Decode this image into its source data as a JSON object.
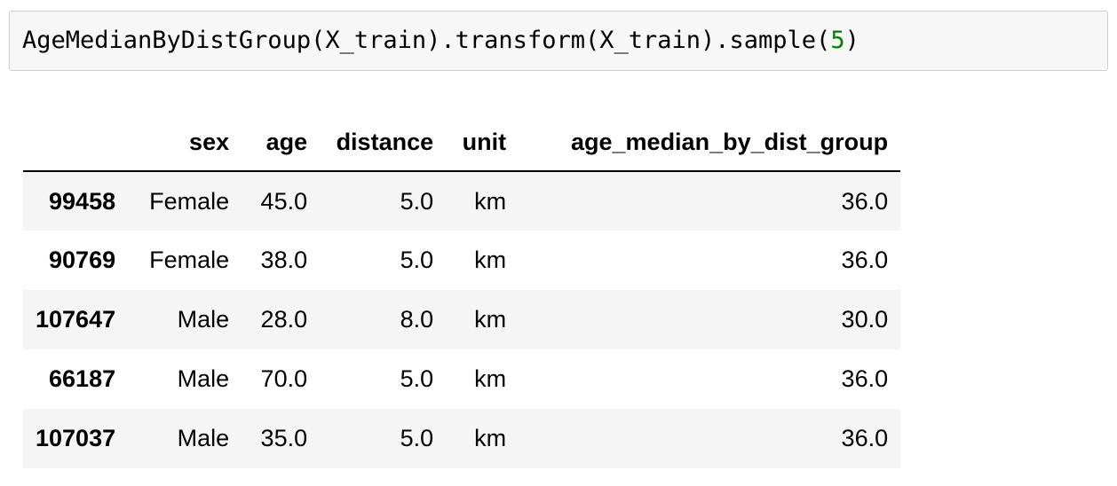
{
  "code_cell": {
    "prefix": "AgeMedianByDistGroup(X_train).transform(X_train).sample(",
    "number": "5",
    "suffix": ")"
  },
  "dataframe": {
    "columns": [
      "sex",
      "age",
      "distance",
      "unit",
      "age_median_by_dist_group"
    ],
    "rows": [
      {
        "index": "99458",
        "cells": [
          "Female",
          "45.0",
          "5.0",
          "km",
          "36.0"
        ]
      },
      {
        "index": "90769",
        "cells": [
          "Female",
          "38.0",
          "5.0",
          "km",
          "36.0"
        ]
      },
      {
        "index": "107647",
        "cells": [
          "Male",
          "28.0",
          "8.0",
          "km",
          "30.0"
        ]
      },
      {
        "index": "66187",
        "cells": [
          "Male",
          "70.0",
          "5.0",
          "km",
          "36.0"
        ]
      },
      {
        "index": "107037",
        "cells": [
          "Male",
          "35.0",
          "5.0",
          "km",
          "36.0"
        ]
      }
    ]
  },
  "colors": {
    "code_number": "#008000",
    "striped_row": "#f5f5f5",
    "input_background": "#f7f7f7"
  }
}
